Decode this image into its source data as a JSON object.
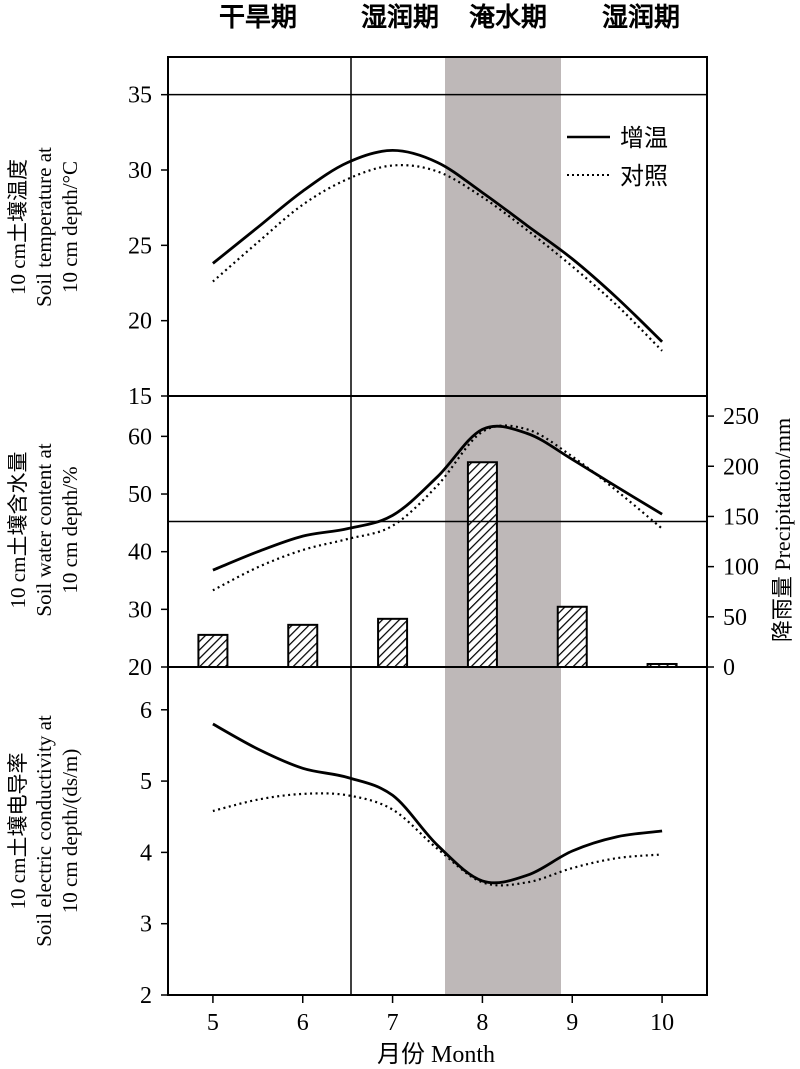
{
  "figure": {
    "periods": [
      "干旱期",
      "湿润期",
      "淹水期",
      "湿润期"
    ],
    "xlabel": "月份 Month",
    "legend": {
      "warming": "增温",
      "control": "对照"
    }
  },
  "chart_data": [
    {
      "type": "line",
      "id": "temperature",
      "ylabel_lines": [
        "10 cm土壤温度",
        "Soil temperature at",
        "10 cm depth/°C"
      ],
      "ylim": [
        15,
        37.5
      ],
      "yticks": [
        "15",
        "20",
        "25",
        "30",
        "35"
      ],
      "x": [
        5,
        5.5,
        6,
        6.5,
        7,
        7.5,
        8,
        8.5,
        9,
        9.5,
        10
      ],
      "series": [
        {
          "name": "增温",
          "style": "solid",
          "values": [
            23.8,
            26.2,
            28.6,
            30.5,
            31.3,
            30.5,
            28.5,
            26.3,
            24.1,
            21.5,
            18.6
          ]
        },
        {
          "name": "对照",
          "style": "dotted",
          "values": [
            22.6,
            25.2,
            27.7,
            29.4,
            30.3,
            29.9,
            28.2,
            26.0,
            23.6,
            21.0,
            18.0
          ]
        }
      ],
      "xlim": [
        4.5,
        10.5
      ],
      "xticks": [
        "5",
        "6",
        "7",
        "8",
        "9",
        "10"
      ],
      "reference_line_y": 35
    },
    {
      "type": "line+bar",
      "id": "water",
      "ylabel_lines": [
        "10 cm土壤含水量",
        "Soil water content at",
        "10 cm depth/%"
      ],
      "ylim": [
        20,
        67
      ],
      "yticks": [
        "20",
        "30",
        "40",
        "50",
        "60"
      ],
      "y2label": "降雨量 Precipitation/mm",
      "y2lim": [
        0,
        270
      ],
      "y2ticks": [
        "0",
        "50",
        "100",
        "150",
        "200",
        "250"
      ],
      "x": [
        5,
        5.5,
        6,
        6.5,
        7,
        7.5,
        8,
        8.5,
        9,
        9.5,
        10
      ],
      "series": [
        {
          "name": "增温",
          "style": "solid",
          "values": [
            36.8,
            40.0,
            42.7,
            44.0,
            46.3,
            53.0,
            61.2,
            60.5,
            56.0,
            51.2,
            46.5
          ]
        },
        {
          "name": "对照",
          "style": "dotted",
          "values": [
            33.3,
            37.3,
            40.3,
            42.2,
            44.5,
            51.5,
            60.8,
            61.2,
            56.5,
            50.5,
            44.0
          ]
        }
      ],
      "bars": {
        "categories": [
          5,
          6,
          7,
          8,
          9,
          10
        ],
        "values": [
          32,
          42,
          48,
          204,
          60,
          3
        ]
      },
      "xlim": [
        4.5,
        10.5
      ],
      "reference_line_y2": 145
    },
    {
      "type": "line",
      "id": "conductivity",
      "ylabel_lines": [
        "10 cm土壤电导率",
        "Soil electric conductivity at",
        "10 cm depth/(ds/m)"
      ],
      "ylim": [
        2,
        6.6
      ],
      "yticks": [
        "2",
        "3",
        "4",
        "5",
        "6"
      ],
      "x": [
        5,
        5.5,
        6,
        6.5,
        7,
        7.5,
        8,
        8.5,
        9,
        9.5,
        10
      ],
      "series": [
        {
          "name": "增温",
          "style": "solid",
          "values": [
            5.8,
            5.45,
            5.18,
            5.05,
            4.8,
            4.1,
            3.6,
            3.68,
            4.02,
            4.22,
            4.3
          ]
        },
        {
          "name": "对照",
          "style": "dotted",
          "values": [
            4.58,
            4.74,
            4.82,
            4.8,
            4.6,
            4.05,
            3.58,
            3.58,
            3.78,
            3.92,
            3.97
          ]
        }
      ],
      "xlim": [
        4.5,
        10.5
      ]
    }
  ]
}
